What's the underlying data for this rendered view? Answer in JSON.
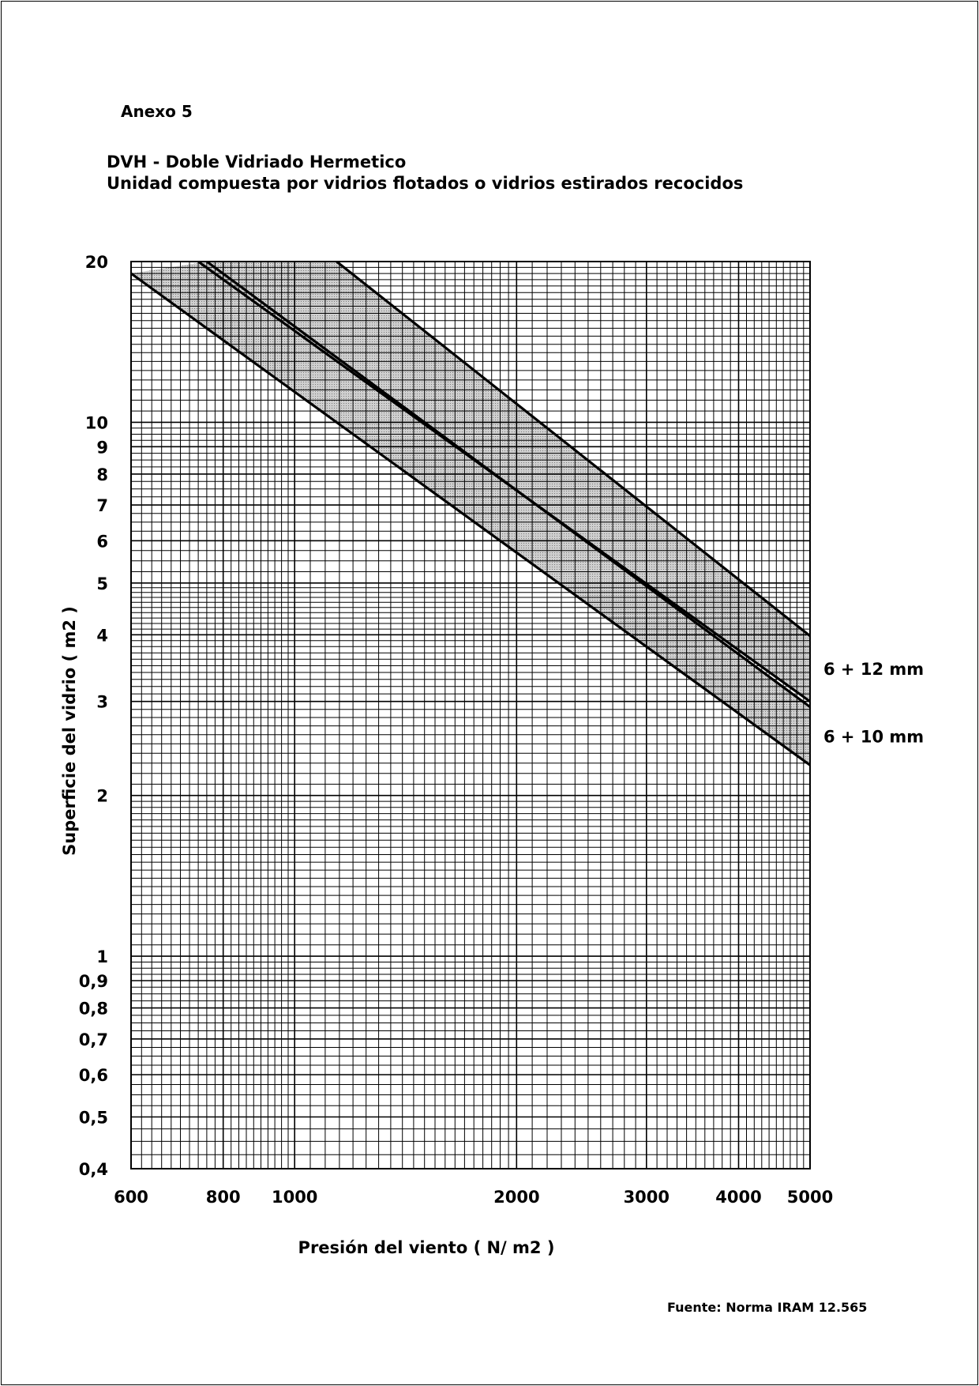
{
  "document": {
    "annex_label": "Anexo 5",
    "title": "DVH - Doble Vidriado Hermetico",
    "subtitle": "Unidad compuesta por vidrios flotados o vidrios estirados recocidos",
    "source": "Fuente: Norma IRAM 12.565"
  },
  "chart_data": {
    "type": "area",
    "scale": {
      "x": "log",
      "y": "log"
    },
    "xlabel": "Presión del viento ( N/ m2 )",
    "ylabel": "Superficie del vidrio ( m2 )",
    "xlim": [
      600,
      5000
    ],
    "ylim": [
      0.4,
      20
    ],
    "grid": true,
    "x_ticks": [
      {
        "value": 600,
        "label": "600"
      },
      {
        "value": 800,
        "label": "800"
      },
      {
        "value": 1000,
        "label": "1000"
      },
      {
        "value": 2000,
        "label": "2000"
      },
      {
        "value": 3000,
        "label": "3000"
      },
      {
        "value": 4000,
        "label": "4000"
      },
      {
        "value": 5000,
        "label": "5000"
      }
    ],
    "y_ticks": [
      {
        "value": 20,
        "label": "20"
      },
      {
        "value": 10,
        "label": "10"
      },
      {
        "value": 9,
        "label": "9"
      },
      {
        "value": 8,
        "label": "8"
      },
      {
        "value": 7,
        "label": "7"
      },
      {
        "value": 6,
        "label": "6"
      },
      {
        "value": 5,
        "label": "5"
      },
      {
        "value": 4,
        "label": "4"
      },
      {
        "value": 3,
        "label": "3"
      },
      {
        "value": 2,
        "label": "2"
      },
      {
        "value": 1,
        "label": "1"
      },
      {
        "value": 0.9,
        "label": "0,9"
      },
      {
        "value": 0.8,
        "label": "0,8"
      },
      {
        "value": 0.7,
        "label": "0,7"
      },
      {
        "value": 0.6,
        "label": "0,6"
      },
      {
        "value": 0.5,
        "label": "0,5"
      },
      {
        "value": 0.4,
        "label": "0,4"
      }
    ],
    "series": [
      {
        "name": "6 + 12 mm",
        "band_color": "#c4c4c4",
        "upper": [
          [
            1140,
            20
          ],
          [
            5000,
            3.98
          ]
        ],
        "lower": [
          [
            740,
            20
          ],
          [
            5000,
            3.0
          ]
        ]
      },
      {
        "name": "6 + 10 mm",
        "band_color": "#c4c4c4",
        "upper": [
          [
            760,
            20
          ],
          [
            5000,
            2.93
          ]
        ],
        "lower": [
          [
            600,
            19.0
          ],
          [
            5000,
            2.28
          ]
        ]
      }
    ]
  }
}
